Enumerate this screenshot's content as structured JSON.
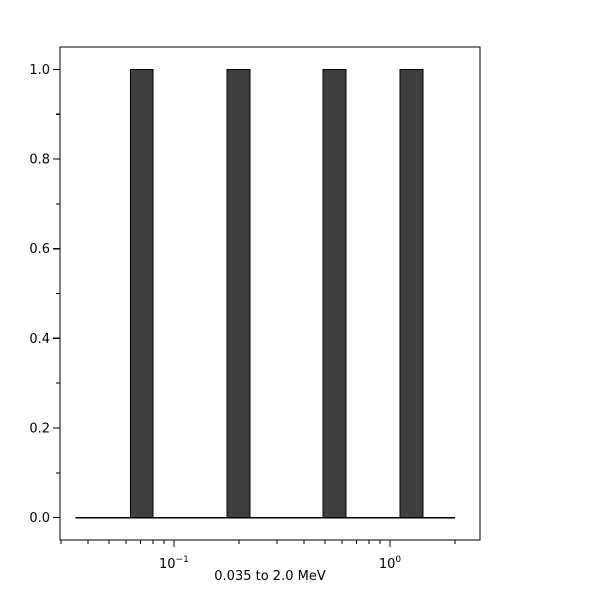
{
  "chart_data": {
    "type": "bar",
    "title": "",
    "xlabel": "0.035 to 2.0 MeV",
    "ylabel": "",
    "x_scale": "log",
    "y_scale": "linear",
    "xlim": [
      0.0297,
      2.61
    ],
    "ylim": [
      -0.05,
      1.05
    ],
    "grid": false,
    "legend": false,
    "bars": [
      {
        "x_left": 0.063,
        "x_right": 0.08,
        "height": 1.0
      },
      {
        "x_left": 0.176,
        "x_right": 0.225,
        "height": 1.0
      },
      {
        "x_left": 0.49,
        "x_right": 0.626,
        "height": 1.0
      },
      {
        "x_left": 1.113,
        "x_right": 1.422,
        "height": 1.0
      }
    ],
    "baseline": {
      "y": 0.0,
      "x_start": 0.035,
      "x_end": 2.0
    },
    "x_major_ticks": [
      {
        "value": 0.1,
        "label_base": "10",
        "label_exp": "−1"
      },
      {
        "value": 1.0,
        "label_base": "10",
        "label_exp": "0"
      }
    ],
    "x_minor_ticks": [
      0.03,
      0.04,
      0.05,
      0.06,
      0.07,
      0.08,
      0.09,
      0.2,
      0.3,
      0.4,
      0.5,
      0.6,
      0.7,
      0.8,
      0.9,
      2.0
    ],
    "y_major_ticks": [
      {
        "value": 0.0,
        "label": "0.0"
      },
      {
        "value": 0.2,
        "label": "0.2"
      },
      {
        "value": 0.4,
        "label": "0.4"
      },
      {
        "value": 0.6,
        "label": "0.6"
      },
      {
        "value": 0.8,
        "label": "0.8"
      },
      {
        "value": 1.0,
        "label": "1.0"
      }
    ],
    "y_minor_ticks": [
      0.1,
      0.3,
      0.5,
      0.7,
      0.9
    ],
    "colors": {
      "bar_fill": "#3f3f3f",
      "bar_edge": "#000000",
      "axis": "#000000",
      "text": "#000000",
      "background": "#ffffff"
    }
  }
}
